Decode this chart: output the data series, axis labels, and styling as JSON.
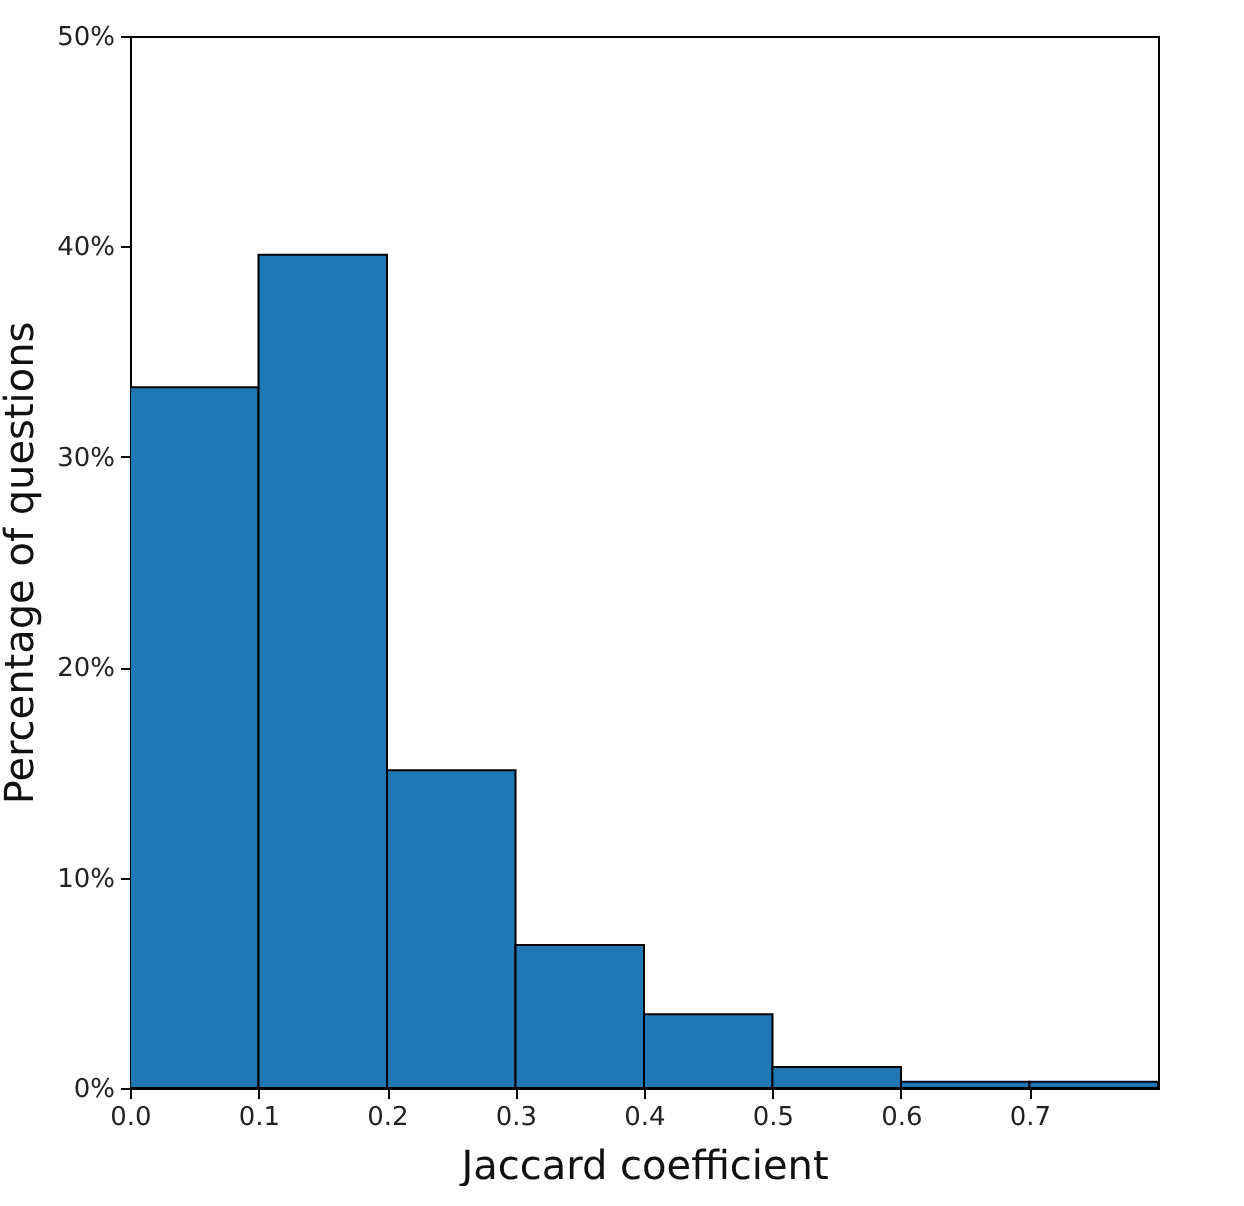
{
  "chart_data": {
    "type": "histogram",
    "xlabel": "Jaccard coefficient",
    "ylabel": "Percentage of questions",
    "bins": [
      0,
      0.1,
      0.2,
      0.3,
      0.4,
      0.5,
      0.6,
      0.7,
      0.8
    ],
    "values": [
      33.3,
      39.6,
      15.1,
      6.8,
      3.5,
      1.0,
      0.3,
      0.3
    ],
    "color": "#1f77b4",
    "xlim": [
      0,
      0.8
    ],
    "xticks": [
      {
        "value": 0,
        "label": "0.0"
      },
      0.1,
      0.2,
      0.3,
      0.4,
      0.5,
      0.6,
      0.7
    ],
    "ylim": [
      0,
      50
    ],
    "yticks": [
      {
        "value": 0,
        "label": "0%"
      },
      {
        "value": 10,
        "label": "10%"
      },
      {
        "value": 20,
        "label": "20%"
      },
      {
        "value": 30,
        "label": "30%"
      },
      {
        "value": 40,
        "label": "40%"
      },
      {
        "value": 50,
        "label": "50%"
      }
    ],
    "grid": false
  }
}
